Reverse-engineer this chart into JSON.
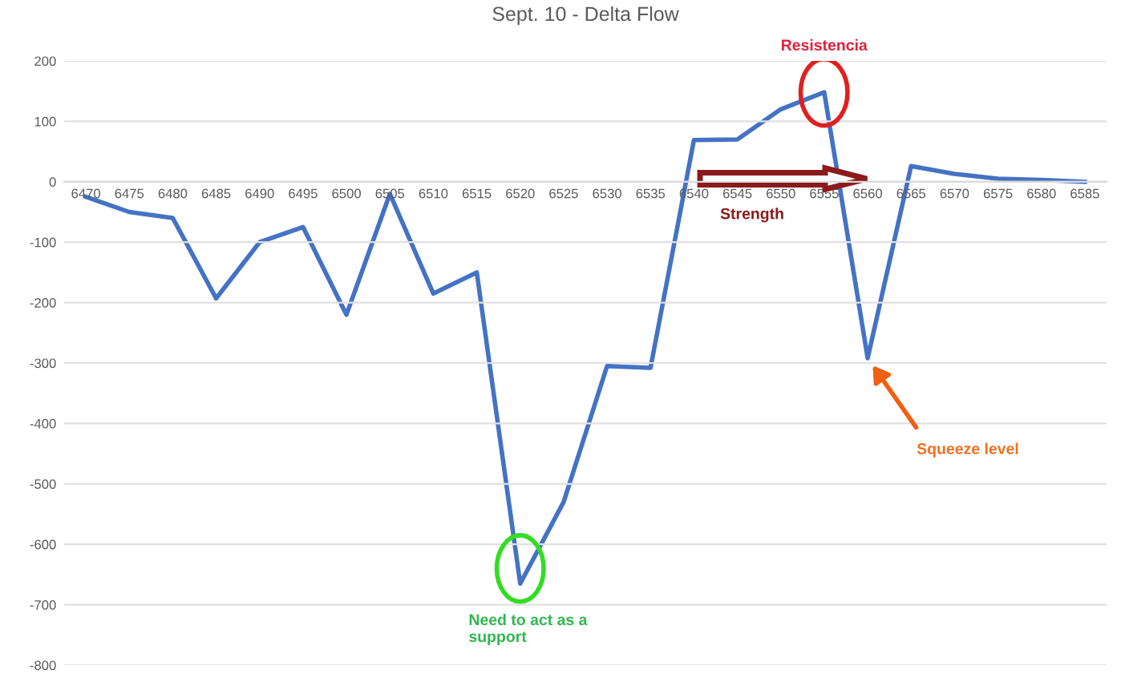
{
  "chart_data": {
    "type": "line",
    "title": "Sept. 10 - Delta Flow",
    "categories": [
      "6470",
      "6475",
      "6480",
      "6485",
      "6490",
      "6495",
      "6500",
      "6505",
      "6510",
      "6515",
      "6520",
      "6525",
      "6530",
      "6535",
      "6540",
      "6545",
      "6550",
      "6555",
      "6560",
      "6565",
      "6570",
      "6575",
      "6580",
      "6585"
    ],
    "series": [
      {
        "color": "#4472c4",
        "values": [
          -25,
          -50,
          -60,
          -193,
          -100,
          -75,
          -220,
          -20,
          -185,
          -150,
          -665,
          -530,
          -305,
          -308,
          69,
          70,
          120,
          148,
          -292,
          26,
          13,
          5,
          3,
          0
        ]
      }
    ],
    "ylim": [
      -800,
      200
    ],
    "yticks": [
      -800,
      -700,
      -600,
      -500,
      -400,
      -300,
      -200,
      -100,
      0,
      100,
      200
    ],
    "grid": "y",
    "marker": "none",
    "line_style": "solid",
    "annotations": [
      "Resistencia",
      "Strength",
      {
        "text": "Squeeze level",
        "x": "6560",
        "y": -292
      },
      "Need to act as a\nsupport"
    ]
  }
}
